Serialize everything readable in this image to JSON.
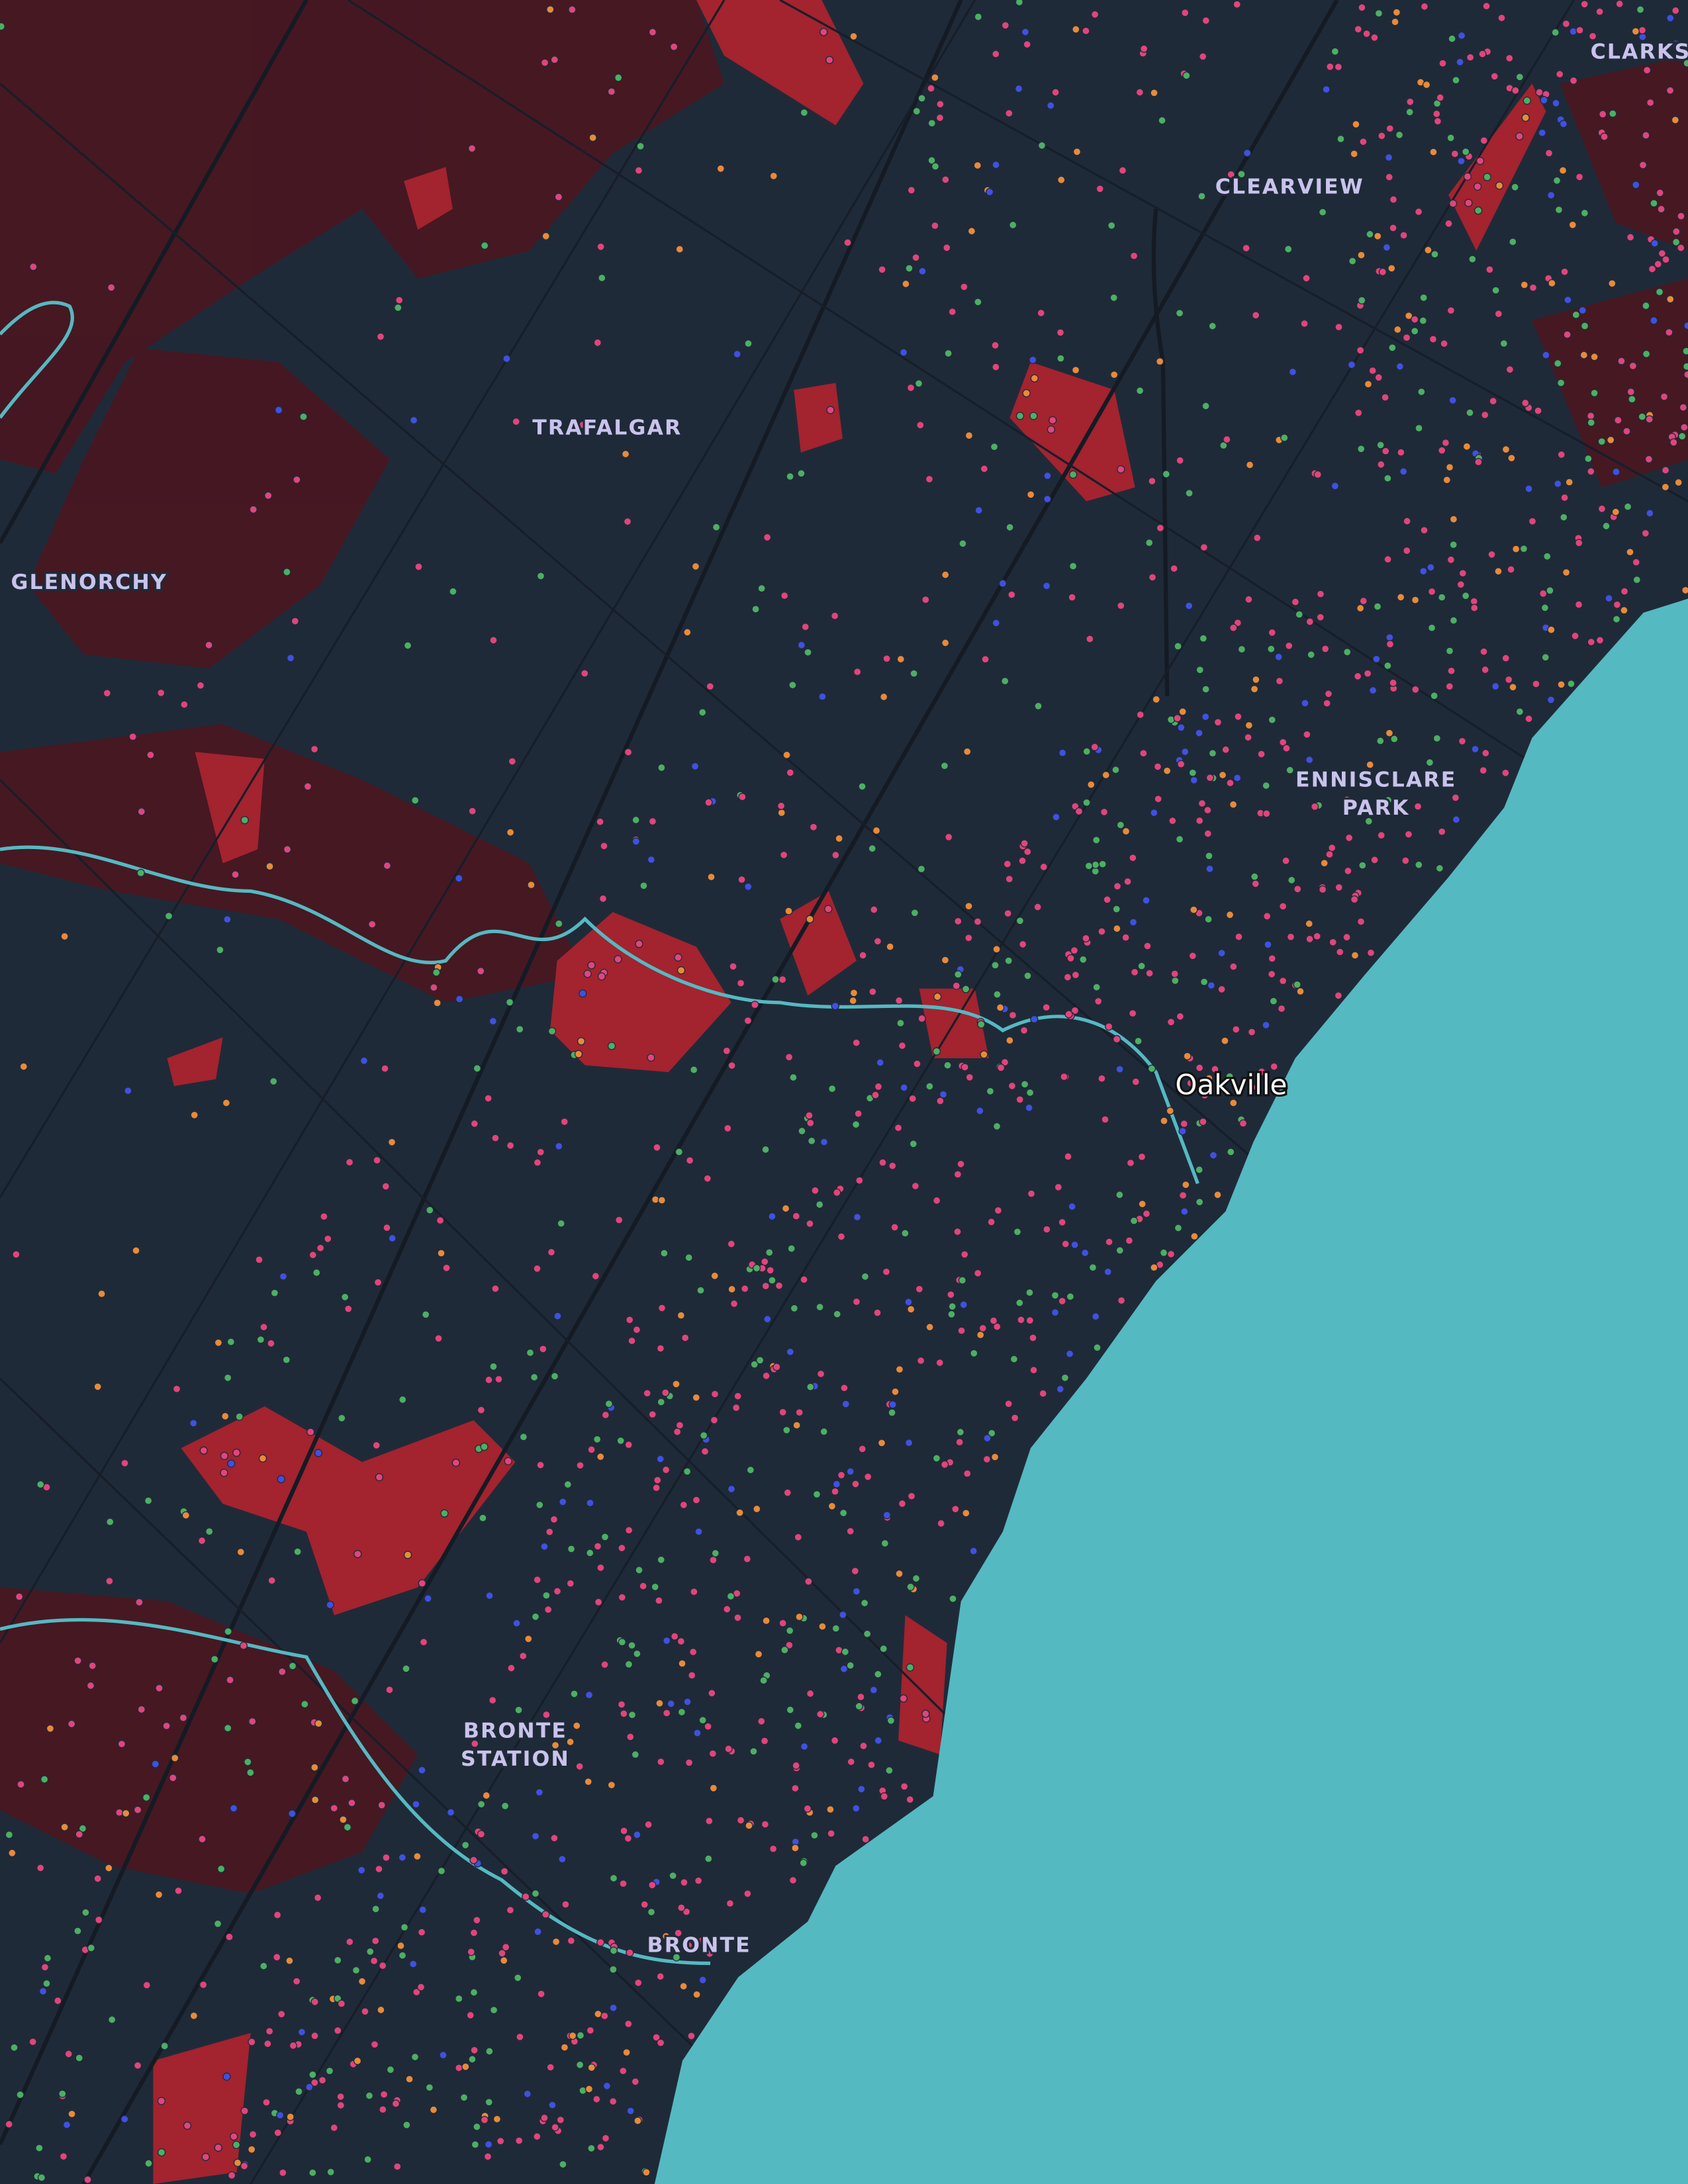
{
  "places": [
    {
      "label": "CLARKS"
    },
    {
      "label": "CLEARVIEW"
    },
    {
      "label": "TRAFALGAR"
    },
    {
      "label": "GLENORCHY"
    },
    {
      "lines": [
        "ENNISCLARE",
        "PARK"
      ]
    },
    {
      "label": "Oakville"
    },
    {
      "lines": [
        "BRONTE",
        "STATION"
      ]
    },
    {
      "label": "BRONTE"
    }
  ]
}
